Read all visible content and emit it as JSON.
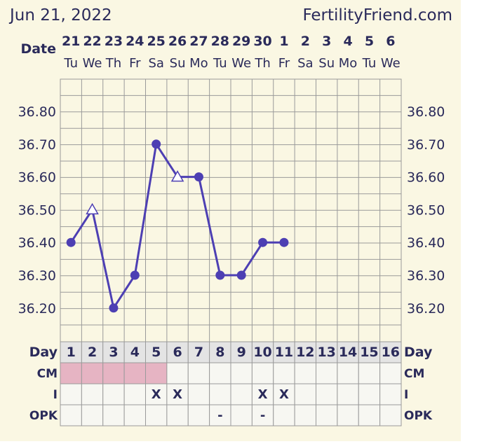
{
  "header": {
    "date": "Jun 21, 2022",
    "site": "FertilityFriend.com"
  },
  "labels": {
    "date_row": "Date",
    "day_row": "Day",
    "cm_row": "CM",
    "i_row": "I",
    "opk_row": "OPK"
  },
  "columns": {
    "dates": [
      "21",
      "22",
      "23",
      "24",
      "25",
      "26",
      "27",
      "28",
      "29",
      "30",
      "1",
      "2",
      "3",
      "4",
      "5",
      "6"
    ],
    "weekdays": [
      "Tu",
      "We",
      "Th",
      "Fr",
      "Sa",
      "Su",
      "Mo",
      "Tu",
      "We",
      "Th",
      "Fr",
      "Sa",
      "Su",
      "Mo",
      "Tu",
      "We"
    ],
    "days": [
      "1",
      "2",
      "3",
      "4",
      "5",
      "6",
      "7",
      "8",
      "9",
      "10",
      "11",
      "12",
      "13",
      "14",
      "15",
      "16"
    ]
  },
  "chart_data": {
    "type": "line",
    "categories": [
      "1",
      "2",
      "3",
      "4",
      "5",
      "6",
      "7",
      "8",
      "9",
      "10",
      "11",
      "12",
      "13",
      "14",
      "15",
      "16"
    ],
    "series": [
      {
        "values": [
          36.4,
          36.5,
          36.2,
          36.3,
          36.7,
          36.6,
          36.6,
          36.3,
          36.3,
          36.4,
          36.4,
          null,
          null,
          null,
          null,
          null
        ],
        "markers": [
          "circle",
          "triangle",
          "circle",
          "circle",
          "circle",
          "triangle",
          "circle",
          "circle",
          "circle",
          "circle",
          "circle",
          null,
          null,
          null,
          null,
          null
        ]
      }
    ],
    "y_ticks": [
      "36.80",
      "36.70",
      "36.60",
      "36.50",
      "36.40",
      "36.30",
      "36.20"
    ],
    "ylim": [
      36.12,
      36.9
    ],
    "grid": true,
    "line_color": "#4d3fb3",
    "axis_text_color": "#2a2a5a"
  },
  "rows": {
    "cm": [
      "pink",
      "pink",
      "pink",
      "pink",
      "pink",
      "",
      "",
      "",
      "",
      "",
      "",
      "",
      "",
      "",
      "",
      ""
    ],
    "i": [
      "",
      "",
      "",
      "",
      "X",
      "X",
      "",
      "",
      "",
      "X",
      "X",
      "",
      "",
      "",
      "",
      ""
    ],
    "opk": [
      "",
      "",
      "",
      "",
      "",
      "",
      "",
      "-",
      "",
      "-",
      "",
      "",
      "",
      "",
      "",
      ""
    ]
  },
  "colors": {
    "panel_bg": "#faf7e3",
    "grid": "#9a9a9a",
    "cm_pink": "#e6b4c3",
    "cell_bg": "#f7f7f2",
    "day_cell_bg": "#e4e4e4"
  }
}
